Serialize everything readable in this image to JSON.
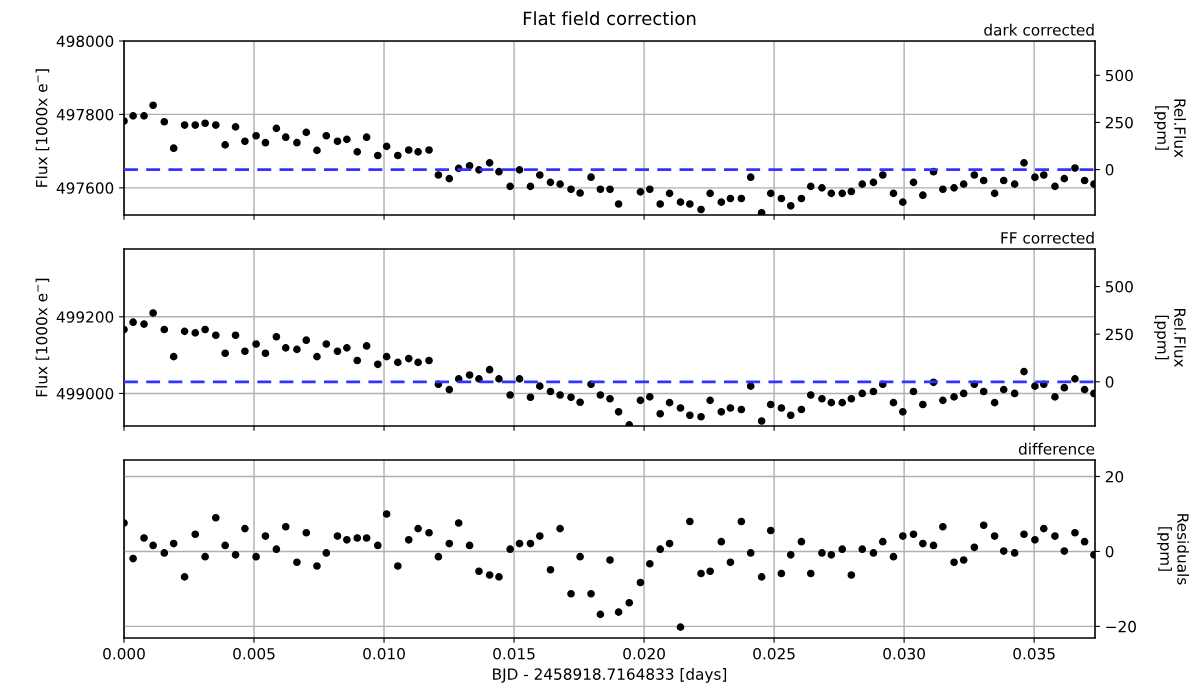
{
  "chart_data": [
    {
      "type": "scatter",
      "title": "Flat field correction",
      "subtitle": "dark corrected",
      "ylabel": "Flux [1000x e$^{−}$]",
      "y2label": "Rel.Flux\n[ppm]",
      "xlim": [
        0,
        0.03734
      ],
      "xticks": [
        0,
        0.005,
        0.01,
        0.015,
        0.02,
        0.025,
        0.03,
        0.035
      ],
      "ylim": [
        497526,
        498000
      ],
      "yticks": [
        497600,
        497800,
        498000
      ],
      "y2lim": [
        -241,
        682
      ],
      "y2ticks": [
        0,
        250,
        500
      ],
      "tick_labels": "y",
      "grid": true,
      "marker": "circle",
      "ref_lines": [
        {
          "axis": "y2",
          "value": 0,
          "color": "#3333ff",
          "line_style": "dashed"
        }
      ],
      "series": [
        {
          "color": "#000000",
          "axis": "y",
          "x": [
            0.0,
            0.00035,
            0.00077,
            0.00112,
            0.00155,
            0.00191,
            0.00233,
            0.00274,
            0.00312,
            0.00353,
            0.00389,
            0.00429,
            0.00465,
            0.00508,
            0.00544,
            0.00586,
            0.00622,
            0.00665,
            0.00701,
            0.00742,
            0.00778,
            0.00821,
            0.00857,
            0.00897,
            0.00933,
            0.00976,
            0.0101,
            0.01053,
            0.01095,
            0.01131,
            0.01173,
            0.01209,
            0.01251,
            0.01287,
            0.01329,
            0.01365,
            0.01406,
            0.01442,
            0.01485,
            0.01521,
            0.01563,
            0.01599,
            0.0164,
            0.01677,
            0.01719,
            0.01754,
            0.01796,
            0.01832,
            0.01869,
            0.01902,
            0.01986,
            0.02022,
            0.02062,
            0.02098,
            0.0214,
            0.02176,
            0.02219,
            0.02254,
            0.02297,
            0.02332,
            0.02374,
            0.0241,
            0.02452,
            0.02487,
            0.02528,
            0.02564,
            0.02605,
            0.02641,
            0.02684,
            0.0272,
            0.02762,
            0.02797,
            0.02839,
            0.02882,
            0.02918,
            0.02959,
            0.02995,
            0.03036,
            0.03072,
            0.03113,
            0.03149,
            0.03192,
            0.03229,
            0.0327,
            0.03306,
            0.03348,
            0.03383,
            0.03425,
            0.03461,
            0.03503,
            0.03537,
            0.0358,
            0.03616,
            0.03657,
            0.03694,
            0.0373
          ],
          "values": [
            497782,
            497796,
            497796,
            497825,
            497780,
            497708,
            497771,
            497771,
            497776,
            497771,
            497717,
            497766,
            497727,
            497742,
            497723,
            497762,
            497738,
            497723,
            497751,
            497702,
            497742,
            497727,
            497732,
            497698,
            497738,
            497688,
            497713,
            497688,
            497703,
            497698,
            497703,
            497635,
            497625,
            497653,
            497660,
            497649,
            497668,
            497644,
            497604,
            497649,
            497604,
            497635,
            497615,
            497610,
            497596,
            497586,
            497629,
            497596,
            497596,
            497556,
            497589,
            497596,
            497556,
            497585,
            497561,
            497556,
            497541,
            497585,
            497561,
            497571,
            497571,
            497629,
            497532,
            497585,
            497571,
            497551,
            497571,
            497604,
            497600,
            497585,
            497585,
            497590,
            497610,
            497615,
            497635,
            497585,
            497561,
            497615,
            497580,
            497644,
            497596,
            497600,
            497610,
            497635,
            497620,
            497585,
            497620,
            497610,
            497668,
            497629,
            497635,
            497604,
            497625,
            497654,
            497620,
            497610
          ]
        }
      ]
    },
    {
      "type": "scatter",
      "subtitle": "FF corrected",
      "ylabel": "Flux [1000x e$^{−}$]",
      "y2label": "Rel.Flux\n[ppm]",
      "xlim": [
        0,
        0.03734
      ],
      "xticks": [
        0,
        0.005,
        0.01,
        0.015,
        0.02,
        0.025,
        0.03,
        0.035
      ],
      "ylim": [
        498915,
        499377
      ],
      "yticks": [
        499000,
        499200
      ],
      "y2lim": [
        -232,
        697
      ],
      "y2ticks": [
        0,
        250,
        500
      ],
      "tick_labels": "y",
      "grid": true,
      "marker": "circle",
      "ref_lines": [
        {
          "axis": "y2",
          "value": 0,
          "color": "#3333ff",
          "line_style": "dashed"
        }
      ],
      "series": [
        {
          "color": "#000000",
          "axis": "y",
          "x": [
            0.0,
            0.00035,
            0.00077,
            0.00112,
            0.00155,
            0.00191,
            0.00233,
            0.00274,
            0.00312,
            0.00353,
            0.00389,
            0.00429,
            0.00465,
            0.00508,
            0.00544,
            0.00586,
            0.00622,
            0.00665,
            0.00701,
            0.00742,
            0.00778,
            0.00821,
            0.00857,
            0.00897,
            0.00933,
            0.00976,
            0.0101,
            0.01053,
            0.01095,
            0.01131,
            0.01173,
            0.01209,
            0.01251,
            0.01287,
            0.01329,
            0.01365,
            0.01406,
            0.01442,
            0.01485,
            0.01521,
            0.01563,
            0.01599,
            0.0164,
            0.01677,
            0.01719,
            0.01754,
            0.01796,
            0.01832,
            0.01869,
            0.01902,
            0.01943,
            0.01986,
            0.02022,
            0.02062,
            0.02098,
            0.0214,
            0.02176,
            0.02219,
            0.02254,
            0.02297,
            0.02332,
            0.02374,
            0.0241,
            0.02452,
            0.02487,
            0.02528,
            0.02564,
            0.02605,
            0.02641,
            0.02684,
            0.0272,
            0.02762,
            0.02797,
            0.02839,
            0.02882,
            0.02918,
            0.02959,
            0.02995,
            0.03036,
            0.03072,
            0.03113,
            0.03149,
            0.03192,
            0.03229,
            0.0327,
            0.03306,
            0.03348,
            0.03383,
            0.03425,
            0.03461,
            0.03503,
            0.03537,
            0.0358,
            0.03616,
            0.03657,
            0.03694,
            0.0373
          ],
          "values": [
            499167,
            499186,
            499181,
            499210,
            499167,
            499096,
            499162,
            499158,
            499167,
            499152,
            499105,
            499152,
            499110,
            499129,
            499105,
            499148,
            499119,
            499115,
            499139,
            499096,
            499129,
            499110,
            499119,
            499086,
            499124,
            499076,
            499096,
            499081,
            499091,
            499081,
            499086,
            499024,
            499010,
            499038,
            499048,
            499038,
            499062,
            499038,
            498996,
            499038,
            498990,
            499019,
            499005,
            498996,
            498990,
            498977,
            499024,
            498996,
            498986,
            498952,
            498918,
            498982,
            498991,
            498947,
            498976,
            498962,
            498943,
            498939,
            498982,
            498952,
            498962,
            498958,
            499019,
            498928,
            498971,
            498962,
            498943,
            498958,
            498996,
            498986,
            498976,
            498976,
            498986,
            499000,
            499005,
            499024,
            498976,
            498952,
            499005,
            498971,
            499029,
            498982,
            498991,
            499000,
            499024,
            499005,
            498976,
            499010,
            499000,
            499057,
            499019,
            499024,
            498991,
            499015,
            499038,
            499010,
            499000
          ]
        }
      ]
    },
    {
      "type": "scatter",
      "subtitle": "difference",
      "xlabel": "BJD - 2458918.7164833 [days]",
      "y2label": "Residuals\n[ppm]",
      "xlim": [
        0,
        0.03734
      ],
      "xticks": [
        {
          "value": 0,
          "label": "0.000"
        },
        {
          "value": 0.005,
          "label": "0.005"
        },
        {
          "value": 0.01,
          "label": "0.010"
        },
        {
          "value": 0.015,
          "label": "0.015"
        },
        {
          "value": 0.02,
          "label": "0.020"
        },
        {
          "value": 0.025,
          "label": "0.025"
        },
        {
          "value": 0.03,
          "label": "0.030"
        },
        {
          "value": 0.035,
          "label": "0.035"
        }
      ],
      "y2lim": [
        -23.1,
        24.4
      ],
      "y2ticks": [
        {
          "value": -20,
          "label": "−20"
        },
        0,
        20
      ],
      "grid": true,
      "marker": "circle",
      "series": [
        {
          "color": "#000000",
          "axis": "y2",
          "x": [
            0.0,
            0.00035,
            0.00077,
            0.00112,
            0.00155,
            0.00191,
            0.00233,
            0.00274,
            0.00312,
            0.00353,
            0.00389,
            0.00429,
            0.00465,
            0.00508,
            0.00544,
            0.00586,
            0.00622,
            0.00665,
            0.00701,
            0.00742,
            0.00778,
            0.00821,
            0.00857,
            0.00897,
            0.00933,
            0.00976,
            0.0101,
            0.01053,
            0.01095,
            0.01131,
            0.01173,
            0.01209,
            0.01251,
            0.01287,
            0.01329,
            0.01365,
            0.01406,
            0.01442,
            0.01485,
            0.01521,
            0.01563,
            0.01599,
            0.0164,
            0.01677,
            0.01719,
            0.01754,
            0.01796,
            0.01832,
            0.01869,
            0.01902,
            0.01943,
            0.01986,
            0.02022,
            0.02062,
            0.02098,
            0.0214,
            0.02176,
            0.02219,
            0.02254,
            0.02297,
            0.02332,
            0.02374,
            0.0241,
            0.02452,
            0.02487,
            0.02528,
            0.02564,
            0.02605,
            0.02641,
            0.02684,
            0.0272,
            0.02762,
            0.02797,
            0.02839,
            0.02882,
            0.02918,
            0.02959,
            0.02995,
            0.03036,
            0.03072,
            0.03113,
            0.03149,
            0.03192,
            0.03229,
            0.0327,
            0.03306,
            0.03348,
            0.03383,
            0.03425,
            0.03461,
            0.03503,
            0.03537,
            0.0358,
            0.03616,
            0.03657,
            0.03694,
            0.0373
          ],
          "values": [
            7.6,
            -1.9,
            3.6,
            1.6,
            -0.4,
            2.1,
            -6.8,
            4.6,
            -1.4,
            9.0,
            1.6,
            -0.9,
            6.1,
            -1.4,
            4.1,
            0.6,
            6.6,
            -2.9,
            5.0,
            -3.9,
            -0.4,
            4.1,
            3.1,
            3.6,
            3.6,
            1.6,
            10.0,
            -3.9,
            3.1,
            6.1,
            5.0,
            -1.4,
            2.1,
            7.6,
            1.6,
            -5.3,
            -6.3,
            -6.8,
            0.6,
            2.1,
            2.1,
            4.1,
            -4.9,
            6.1,
            -11.3,
            -1.4,
            -11.3,
            -16.8,
            -2.3,
            -16.2,
            -13.7,
            -8.3,
            -3.3,
            0.6,
            2.1,
            -20.2,
            8.0,
            -5.9,
            -5.3,
            2.6,
            -2.9,
            8.0,
            -0.4,
            -6.8,
            5.6,
            -5.9,
            -0.9,
            2.6,
            -5.9,
            -0.4,
            -0.9,
            0.6,
            -6.3,
            0.6,
            -0.4,
            2.6,
            -1.4,
            4.1,
            4.6,
            2.1,
            1.6,
            6.6,
            -2.9,
            -2.3,
            1.1,
            7.0,
            4.1,
            0.1,
            -0.4,
            4.6,
            3.1,
            6.1,
            4.1,
            0.1,
            5.0,
            2.6,
            -0.9
          ]
        }
      ]
    }
  ]
}
